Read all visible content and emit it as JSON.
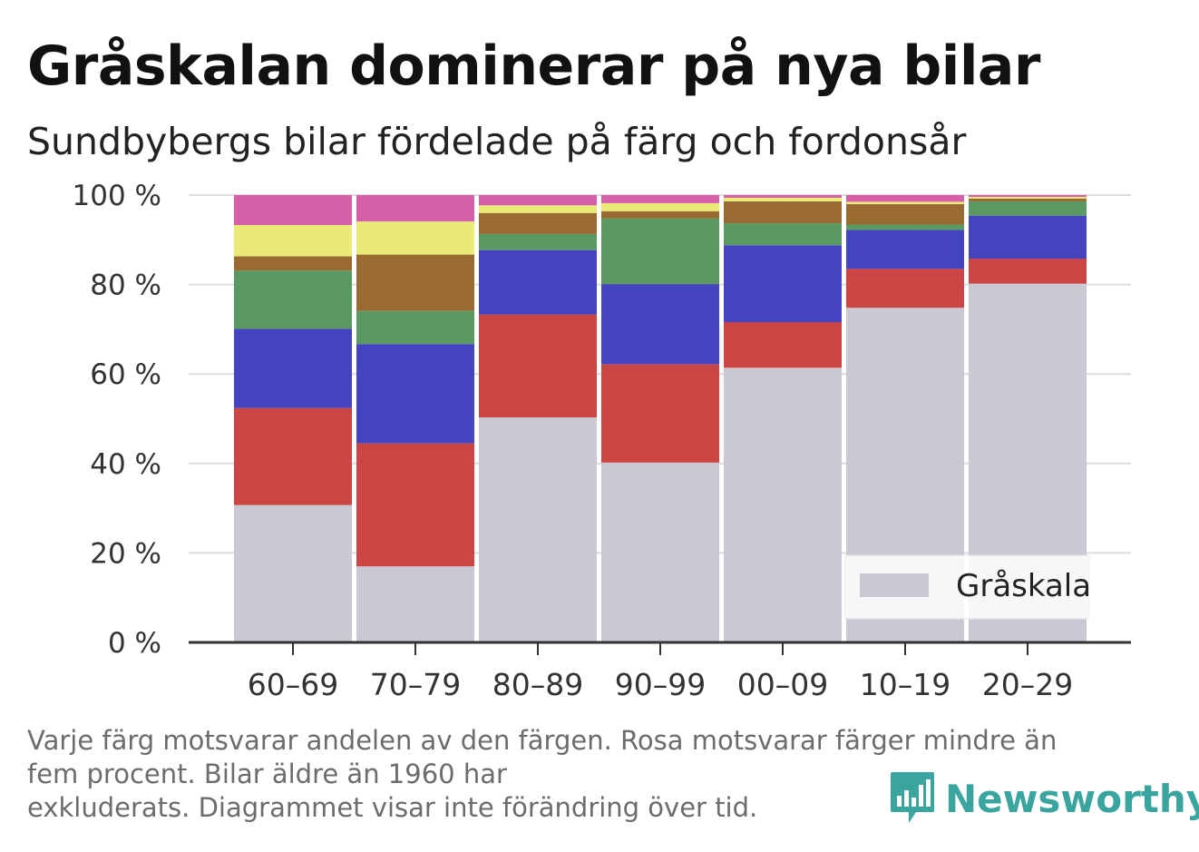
{
  "title": "Gråskalan dominerar på nya bilar",
  "subtitle": "Sundbybergs bilar fördelade på färg och fordonsår",
  "footnote": "Varje färg motsvarar andelen av den färgen. Rosa motsvarar färger mindre än\nfem procent. Bilar äldre än 1960 har\nexkluderats. Diagrammet visar inte förändring över tid.",
  "brand": {
    "name": "Newsworthy",
    "icon": "newsworthy-logo-icon",
    "color": "#3aa59f"
  },
  "chart_data": {
    "type": "bar",
    "stacked": true,
    "categories": [
      "60–69",
      "70–79",
      "80–89",
      "90–99",
      "00–09",
      "10–19",
      "20–29"
    ],
    "ylim": [
      0,
      100
    ],
    "yticks": [
      0,
      20,
      40,
      60,
      80,
      100
    ],
    "ytick_labels": [
      "0 %",
      "20 %",
      "40 %",
      "60 %",
      "80 %",
      "100 %"
    ],
    "grid": true,
    "legend_position": "bottom-right",
    "legend": [
      "Gråskala"
    ],
    "series": [
      {
        "name": "Gråskala",
        "color": "#c9c8d3",
        "values": [
          30.7,
          17.0,
          50.3,
          40.2,
          61.4,
          74.8,
          80.2
        ]
      },
      {
        "color": "#cc4545",
        "values": [
          21.7,
          27.5,
          23.0,
          22.0,
          10.2,
          8.7,
          5.6
        ]
      },
      {
        "color": "#4444c0",
        "values": [
          17.7,
          22.2,
          14.4,
          17.9,
          17.2,
          8.7,
          9.6
        ]
      },
      {
        "color": "#5a9a62",
        "values": [
          13.0,
          7.4,
          3.6,
          14.7,
          4.9,
          1.2,
          3.2
        ]
      },
      {
        "color": "#996b33",
        "values": [
          3.2,
          12.6,
          4.7,
          1.6,
          4.9,
          4.6,
          0.6
        ]
      },
      {
        "color": "#eaea77",
        "values": [
          7.0,
          7.4,
          1.7,
          1.8,
          0.8,
          0.5,
          0.4
        ]
      },
      {
        "color": "#d660a8",
        "values": [
          6.7,
          5.9,
          2.3,
          1.8,
          0.6,
          1.5,
          0.4
        ]
      }
    ]
  }
}
